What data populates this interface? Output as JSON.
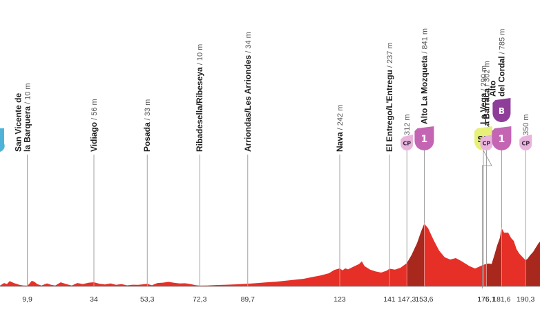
{
  "chart_data": {
    "type": "area",
    "x_unit": "km",
    "y_unit": "m",
    "xlim": [
      0,
      198
    ],
    "ylim": [
      0,
      900
    ],
    "colors": {
      "profile": "#e63027",
      "climb": "#a8281d",
      "start_tag": "#4fb3d9",
      "climb_tag": "#c465b3",
      "checkpoint_tag": "#e8b4dd",
      "sprint_tag": "#e6f07a",
      "bonus_tag": "#8e3e98"
    },
    "profile": [
      [
        0,
        10
      ],
      [
        1.5,
        45
      ],
      [
        2.5,
        30
      ],
      [
        3.5,
        70
      ],
      [
        5,
        45
      ],
      [
        7,
        20
      ],
      [
        8.5,
        12
      ],
      [
        9.9,
        10
      ],
      [
        10.5,
        30
      ],
      [
        11.5,
        75
      ],
      [
        12.5,
        60
      ],
      [
        13.5,
        30
      ],
      [
        15,
        12
      ],
      [
        17,
        40
      ],
      [
        18.5,
        20
      ],
      [
        20,
        12
      ],
      [
        22,
        55
      ],
      [
        24,
        30
      ],
      [
        26,
        12
      ],
      [
        28,
        45
      ],
      [
        30,
        30
      ],
      [
        32,
        48
      ],
      [
        34,
        56
      ],
      [
        36,
        35
      ],
      [
        38,
        25
      ],
      [
        40,
        40
      ],
      [
        42,
        20
      ],
      [
        44,
        30
      ],
      [
        46,
        14
      ],
      [
        48,
        22
      ],
      [
        50,
        20
      ],
      [
        52,
        28
      ],
      [
        53.3,
        33
      ],
      [
        55,
        15
      ],
      [
        57,
        45
      ],
      [
        59,
        50
      ],
      [
        61,
        60
      ],
      [
        63,
        48
      ],
      [
        65,
        40
      ],
      [
        67,
        42
      ],
      [
        69,
        30
      ],
      [
        71,
        15
      ],
      [
        72.3,
        10
      ],
      [
        75,
        12
      ],
      [
        78,
        18
      ],
      [
        82,
        22
      ],
      [
        86,
        28
      ],
      [
        89.7,
        34
      ],
      [
        95,
        50
      ],
      [
        100,
        62
      ],
      [
        105,
        82
      ],
      [
        110,
        102
      ],
      [
        113,
        125
      ],
      [
        116,
        145
      ],
      [
        119,
        175
      ],
      [
        121,
        220
      ],
      [
        123,
        242
      ],
      [
        124,
        215
      ],
      [
        125,
        242
      ],
      [
        126,
        228
      ],
      [
        128,
        265
      ],
      [
        130,
        300
      ],
      [
        131,
        335
      ],
      [
        132,
        270
      ],
      [
        134,
        225
      ],
      [
        136,
        200
      ],
      [
        138,
        185
      ],
      [
        140,
        210
      ],
      [
        141,
        237
      ],
      [
        143,
        225
      ],
      [
        145,
        250
      ],
      [
        147.3,
        312
      ],
      [
        149,
        420
      ],
      [
        151,
        580
      ],
      [
        152.5,
        740
      ],
      [
        153.6,
        841
      ],
      [
        155,
        780
      ],
      [
        157,
        620
      ],
      [
        159,
        480
      ],
      [
        161,
        390
      ],
      [
        163,
        360
      ],
      [
        165,
        380
      ],
      [
        167,
        340
      ],
      [
        170,
        270
      ],
      [
        172,
        240
      ],
      [
        175,
        290
      ],
      [
        176.1,
        302
      ],
      [
        177,
        305
      ],
      [
        178,
        300
      ],
      [
        179,
        420
      ],
      [
        180,
        550
      ],
      [
        181,
        650
      ],
      [
        181.6,
        785
      ],
      [
        182.5,
        720
      ],
      [
        184,
        720
      ],
      [
        185,
        650
      ],
      [
        186,
        610
      ],
      [
        187,
        500
      ],
      [
        188,
        440
      ],
      [
        189,
        400
      ],
      [
        190.3,
        350
      ],
      [
        191,
        370
      ],
      [
        192,
        420
      ],
      [
        193,
        460
      ],
      [
        194,
        520
      ],
      [
        195,
        580
      ],
      [
        196,
        620
      ],
      [
        197,
        740
      ],
      [
        198,
        860
      ]
    ],
    "climb_sections": [
      {
        "from": 147.3,
        "to": 153.6
      },
      {
        "from": 176.1,
        "to": 181.6
      },
      {
        "from": 190.3,
        "to": 198
      }
    ],
    "waypoints": [
      {
        "km": 9.9,
        "km_label": "9,9",
        "name": "San Vicente de\nla Barquera",
        "alt": 10,
        "alt_label": "/ 10 m"
      },
      {
        "km": 34,
        "km_label": "34",
        "name": "Vidiago",
        "alt": 56,
        "alt_label": "/ 56 m"
      },
      {
        "km": 53.3,
        "km_label": "53,3",
        "name": "Posada",
        "alt": 33,
        "alt_label": "/ 33 m"
      },
      {
        "km": 72.3,
        "km_label": "72,3",
        "name": "Ribadesella/Ribeseya",
        "alt": 10,
        "alt_label": "/ 10 m"
      },
      {
        "km": 89.7,
        "km_label": "89,7",
        "name": "Arriondas/Les Arriondes",
        "alt": 34,
        "alt_label": "/ 34 m"
      },
      {
        "km": 123,
        "km_label": "123",
        "name": "Nava",
        "alt": 242,
        "alt_label": "/ 242 m"
      },
      {
        "km": 141,
        "km_label": "141",
        "name": "El Entrego/L'Entregu",
        "alt": 237,
        "alt_label": "/ 237 m"
      },
      {
        "km": 147.3,
        "km_label": "147,3",
        "name": "",
        "alt": 312,
        "alt_label": "312 m",
        "tag": "CP"
      },
      {
        "km": 153.6,
        "km_label": "153,6",
        "name": "Alto La Mozqueta",
        "alt": 841,
        "alt_label": "/ 841 m",
        "tag": "1"
      },
      {
        "km": 175,
        "km_label": "175",
        "name": "La Vega",
        "alt": 290,
        "alt_label": "/ 290 m",
        "tag": "SP"
      },
      {
        "km": 176.1,
        "km_label": "176,1",
        "name": "La Barraca",
        "alt": 302,
        "alt_label": "/ 302 m",
        "tag": "CP"
      },
      {
        "km": 181.6,
        "km_label": "181,6",
        "name": "Alto\ndel Cordal",
        "alt": 785,
        "alt_label": "/ 785 m",
        "tag": "1",
        "bonus": "B"
      },
      {
        "km": 190.3,
        "km_label": "190,3",
        "name": "",
        "alt": 350,
        "alt_label": "350 m",
        "tag": "CP"
      }
    ]
  }
}
